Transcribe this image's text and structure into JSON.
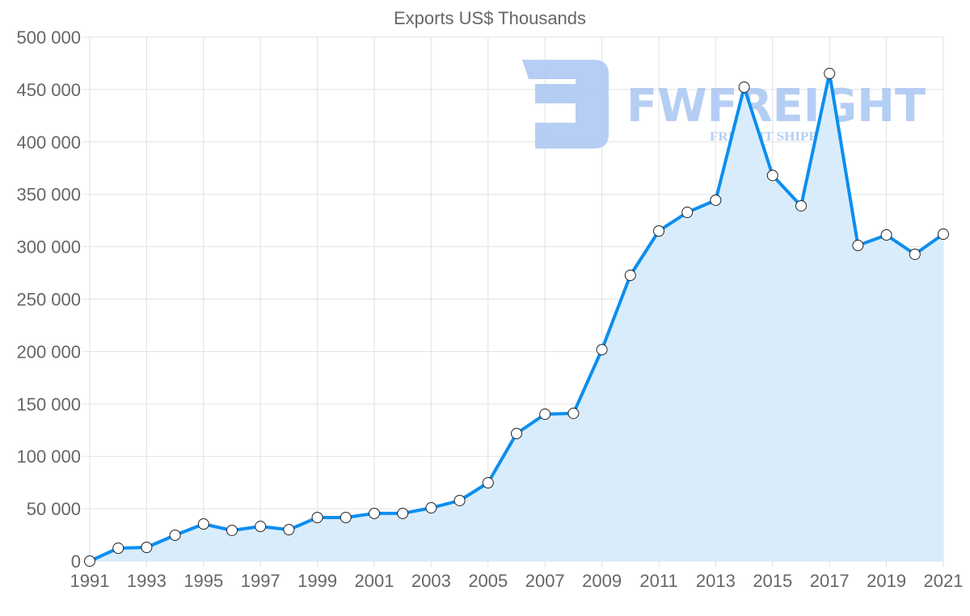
{
  "chart_data": {
    "type": "line",
    "title": "Exports US$ Thousands",
    "xlabel": "",
    "ylabel": "",
    "x": [
      1991,
      1992,
      1993,
      1994,
      1995,
      1996,
      1997,
      1998,
      1999,
      2000,
      2001,
      2002,
      2003,
      2004,
      2005,
      2006,
      2007,
      2008,
      2009,
      2010,
      2011,
      2012,
      2013,
      2014,
      2015,
      2016,
      2017,
      2018,
      2019,
      2020,
      2021
    ],
    "series": [
      {
        "name": "Exports US$ Thousands",
        "color": "#0b8ef0",
        "fill": "#d9ecfc",
        "values": [
          0,
          12300,
          13100,
          24700,
          35400,
          29300,
          33100,
          30000,
          41600,
          41600,
          45500,
          45500,
          50800,
          57800,
          74700,
          121700,
          140200,
          141000,
          201800,
          272700,
          315000,
          332800,
          344400,
          452200,
          368000,
          339000,
          465300,
          301200,
          311200,
          292800,
          312000
        ]
      }
    ],
    "ylim": [
      0,
      500000
    ],
    "yticks": [
      "0",
      "50 000",
      "100 000",
      "150 000",
      "200 000",
      "250 000",
      "300 000",
      "350 000",
      "400 000",
      "450 000",
      "500 000"
    ],
    "xticks": [
      "1991",
      "1993",
      "1995",
      "1997",
      "1999",
      "2001",
      "2003",
      "2005",
      "2007",
      "2009",
      "2011",
      "2013",
      "2015",
      "2017",
      "2019",
      "2021"
    ],
    "grid": true,
    "legend": "none"
  },
  "watermark": {
    "brand": "FWFREIGHT",
    "tagline": "FREIGHT SHIPPING",
    "color": "#a9c6f2"
  }
}
